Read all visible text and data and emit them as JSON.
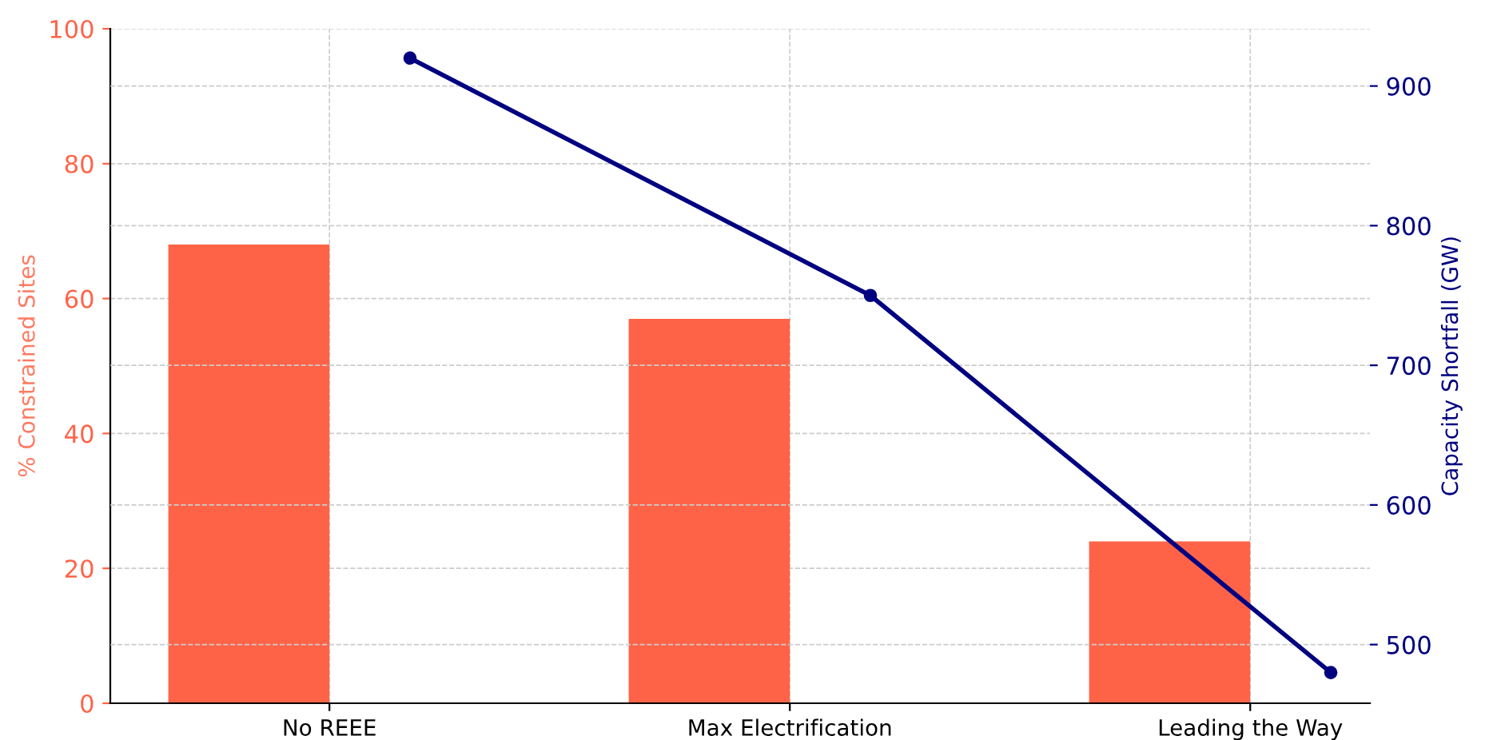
{
  "chart_data": {
    "type": "bar",
    "categories": [
      "No REEE",
      "Max Electrification",
      "Leading the Way"
    ],
    "series": [
      {
        "name": null,
        "color": "#ff6347",
        "values": [
          68,
          57,
          24
        ]
      },
      {
        "type": "line",
        "name": null,
        "color": "#000080",
        "axis": "y2",
        "values": [
          920,
          750,
          480
        ]
      }
    ],
    "ylabel": "% Constrained Sites",
    "y2label": "Capacity Shortfall (GW)",
    "ylim": [
      0,
      100
    ],
    "yticks": [
      0,
      20,
      40,
      60,
      80,
      100
    ],
    "y2lim": [
      458,
      941
    ],
    "y2ticks": [
      500,
      600,
      700,
      800,
      900
    ],
    "grid": true,
    "marker": "circle",
    "line_style": "solid"
  }
}
